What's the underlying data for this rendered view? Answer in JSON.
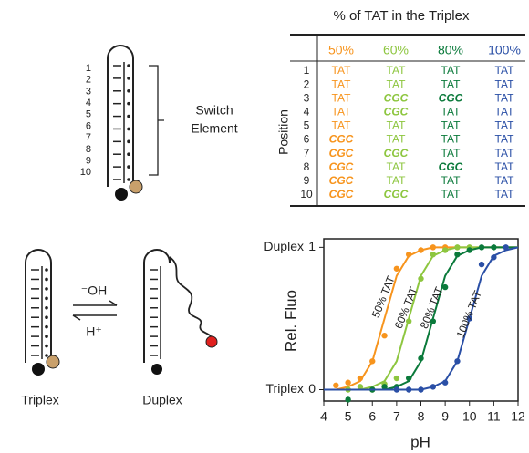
{
  "switch_diagram": {
    "positions": [
      "1",
      "2",
      "3",
      "4",
      "5",
      "6",
      "7",
      "8",
      "9",
      "10"
    ],
    "label": [
      "Switch",
      "Element"
    ]
  },
  "equilibrium": {
    "forward": "⁻OH",
    "backward": "H⁺",
    "left": "Triplex",
    "right": "Duplex"
  },
  "table": {
    "title": "% of TAT in the Triplex",
    "row_header": "Position",
    "rows": [
      "1",
      "2",
      "3",
      "4",
      "5",
      "6",
      "7",
      "8",
      "9",
      "10"
    ],
    "columns": [
      {
        "header": "50%",
        "color": "#f7941d",
        "cells": [
          "TAT",
          "TAT",
          "TAT",
          "TAT",
          "TAT",
          "CGC",
          "CGC",
          "CGC",
          "CGC",
          "CGC"
        ]
      },
      {
        "header": "60%",
        "color": "#8dc63f",
        "cells": [
          "TAT",
          "TAT",
          "CGC",
          "CGC",
          "TAT",
          "TAT",
          "CGC",
          "TAT",
          "TAT",
          "CGC"
        ]
      },
      {
        "header": "80%",
        "color": "#0b7a3b",
        "cells": [
          "TAT",
          "TAT",
          "CGC",
          "TAT",
          "TAT",
          "TAT",
          "TAT",
          "CGC",
          "TAT",
          "TAT"
        ]
      },
      {
        "header": "100%",
        "color": "#2a4fa6",
        "cells": [
          "TAT",
          "TAT",
          "TAT",
          "TAT",
          "TAT",
          "TAT",
          "TAT",
          "TAT",
          "TAT",
          "TAT"
        ]
      }
    ]
  },
  "chart_data": {
    "type": "scatter",
    "x_label": "pH",
    "y_label": "Rel. Fluo",
    "xlim": [
      4,
      12
    ],
    "xticks": [
      4,
      5,
      6,
      7,
      8,
      9,
      10,
      11,
      12
    ],
    "ylim": [
      -0.08,
      1.06
    ],
    "yticks": [
      0,
      1
    ],
    "ytick_names": [
      "Triplex",
      "Duplex"
    ],
    "fit_x": [
      4,
      4.5,
      5,
      5.5,
      6,
      6.5,
      7,
      7.5,
      8,
      8.5,
      9,
      9.5,
      10,
      10.5,
      11,
      11.5,
      12
    ],
    "series": [
      {
        "name": "50% TAT",
        "color": "#f7941d",
        "x": [
          4.5,
          5,
          5.5,
          6,
          6.5,
          7,
          7.5,
          8,
          8.5,
          9
        ],
        "values": [
          0.03,
          0.05,
          0.08,
          0.2,
          0.38,
          0.85,
          0.95,
          0.98,
          1.0,
          1.0
        ],
        "fit_values": [
          0,
          0,
          0.02,
          0.06,
          0.2,
          0.5,
          0.8,
          0.94,
          0.98,
          1,
          1,
          1,
          1,
          1,
          1,
          1,
          1
        ]
      },
      {
        "name": "60% TAT",
        "color": "#8dc63f",
        "x": [
          5,
          5.5,
          6,
          6.5,
          7,
          7.5,
          8,
          8.5,
          9,
          9.5,
          10
        ],
        "values": [
          0,
          0.02,
          0,
          0.04,
          0.08,
          0.48,
          0.78,
          0.95,
          0.98,
          1.0,
          1.0
        ],
        "fit_values": [
          0,
          0,
          0,
          0,
          0.02,
          0.06,
          0.2,
          0.5,
          0.8,
          0.94,
          0.98,
          1,
          1,
          1,
          1,
          1,
          1
        ]
      },
      {
        "name": "80% TAT",
        "color": "#0b7a3b",
        "x": [
          5,
          6,
          6.5,
          7,
          7.5,
          8,
          8.5,
          9,
          9.5,
          10,
          10.5,
          11
        ],
        "values": [
          -0.07,
          0,
          0.02,
          0.02,
          0.08,
          0.22,
          0.48,
          0.72,
          0.95,
          0.98,
          1.0,
          1.0
        ],
        "fit_values": [
          0,
          0,
          0,
          0,
          0,
          0,
          0.02,
          0.06,
          0.2,
          0.5,
          0.8,
          0.94,
          0.98,
          1,
          1,
          1,
          1
        ]
      },
      {
        "name": "100% TAT",
        "color": "#2a4fa6",
        "x": [
          7,
          7.5,
          8,
          8.5,
          9,
          9.5,
          10,
          10.5,
          11,
          11.5
        ],
        "values": [
          0,
          0,
          0,
          0.02,
          0.05,
          0.2,
          0.5,
          0.88,
          0.93,
          1.0
        ],
        "fit_values": [
          0,
          0,
          0,
          0,
          0,
          0,
          0,
          0,
          0,
          0.02,
          0.06,
          0.2,
          0.5,
          0.8,
          0.94,
          0.98,
          1
        ]
      }
    ]
  }
}
